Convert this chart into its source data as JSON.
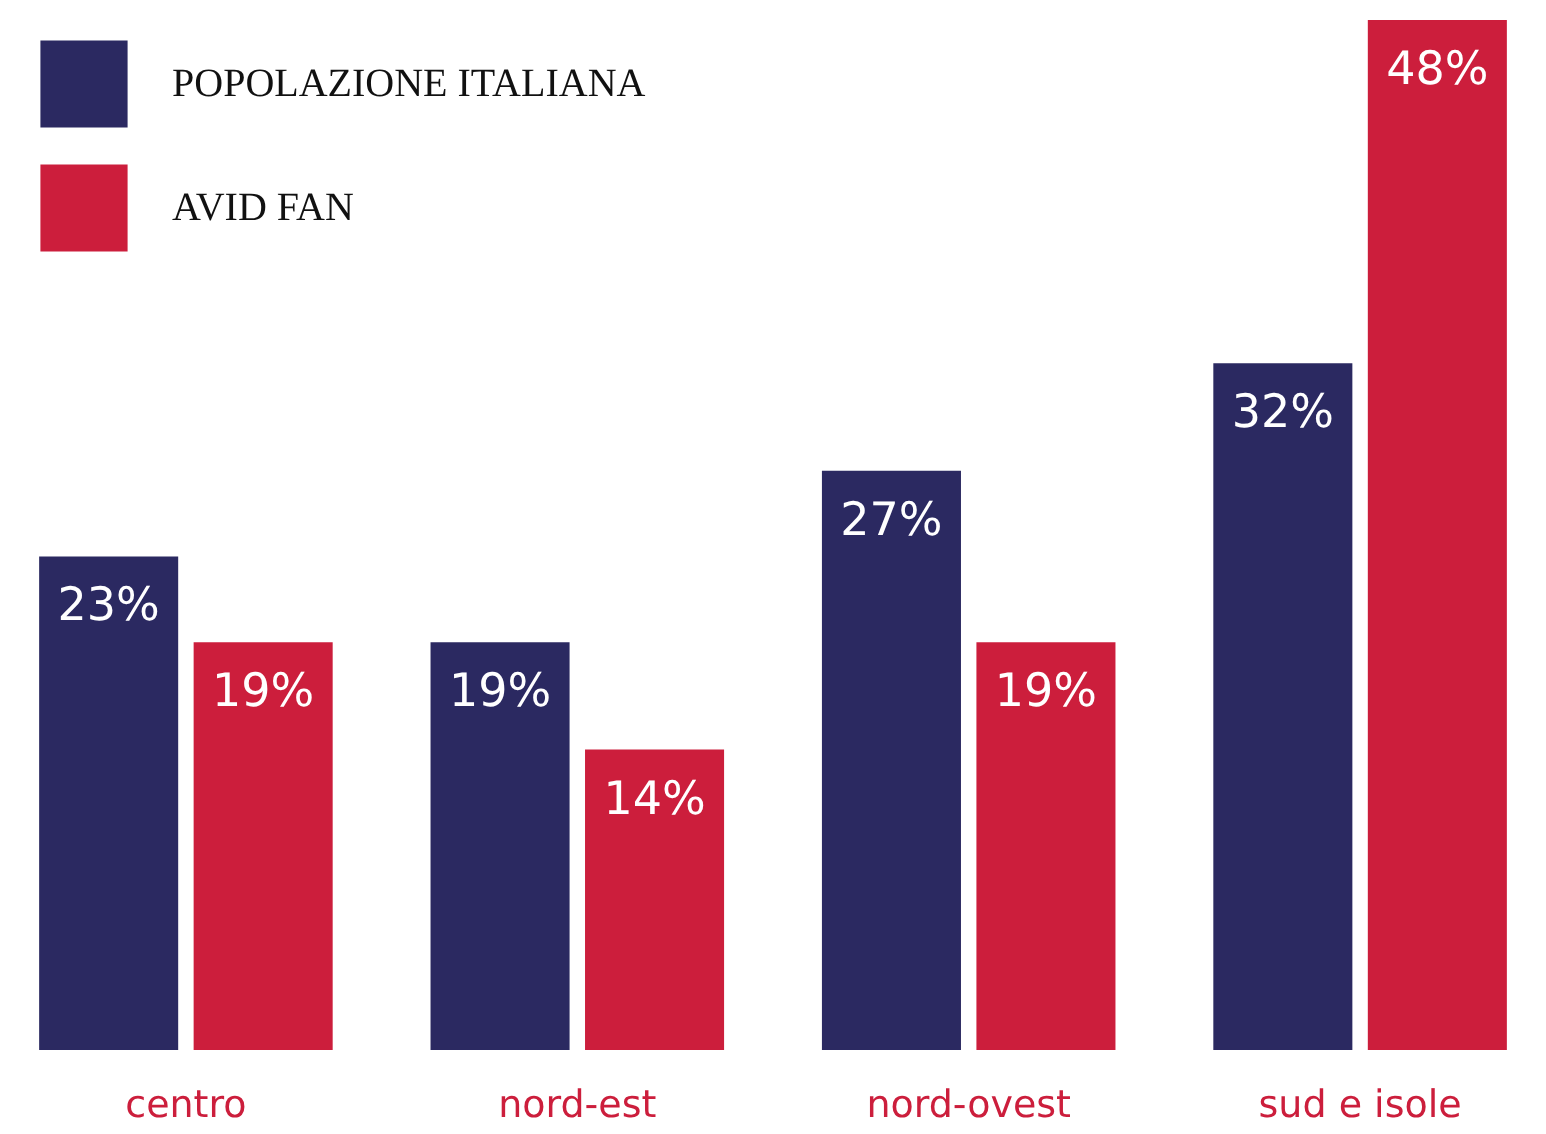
{
  "chart_data": {
    "type": "bar",
    "categories": [
      "centro",
      "nord-est",
      "nord-ovest",
      "sud e isole"
    ],
    "series": [
      {
        "name": "POPOLAZIONE ITALIANA",
        "color": "#2b2961",
        "values": [
          23,
          19,
          27,
          32
        ],
        "value_labels": [
          "23%",
          "19%",
          "27%",
          "32%"
        ]
      },
      {
        "name": "AVID FAN",
        "color": "#cc1e3c",
        "values": [
          19,
          14,
          19,
          48
        ],
        "value_labels": [
          "19%",
          "14%",
          "19%",
          "48%"
        ]
      }
    ],
    "legend": "top left",
    "grid": false,
    "tick_labels": "x"
  }
}
